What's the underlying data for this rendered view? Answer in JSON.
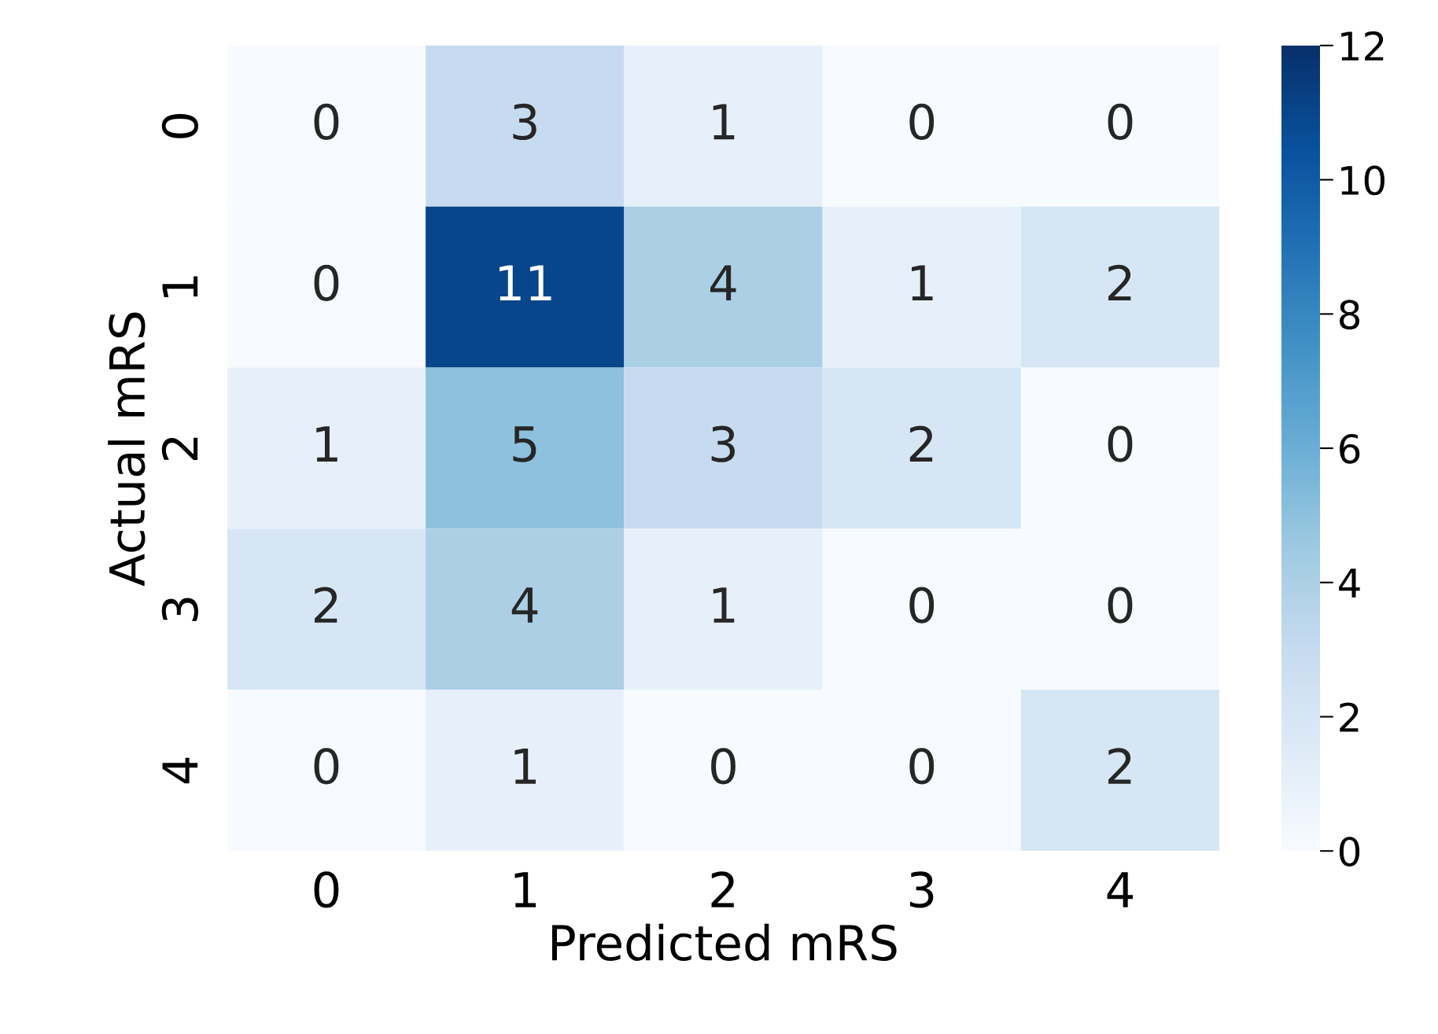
{
  "chart_data": {
    "type": "heatmap",
    "xlabel": "Predicted mRS",
    "ylabel": "Actual mRS",
    "categories": [
      "0",
      "1",
      "2",
      "3",
      "4"
    ],
    "y_categories": [
      "0",
      "1",
      "2",
      "3",
      "4"
    ],
    "cells": [
      [
        0,
        3,
        1,
        0,
        0
      ],
      [
        0,
        11,
        4,
        1,
        2
      ],
      [
        1,
        5,
        3,
        2,
        0
      ],
      [
        2,
        4,
        1,
        0,
        0
      ],
      [
        0,
        1,
        0,
        0,
        2
      ]
    ],
    "data_labels": true,
    "clim": [
      0,
      12
    ],
    "cticks": [
      0,
      2,
      4,
      6,
      8,
      10,
      12
    ]
  }
}
